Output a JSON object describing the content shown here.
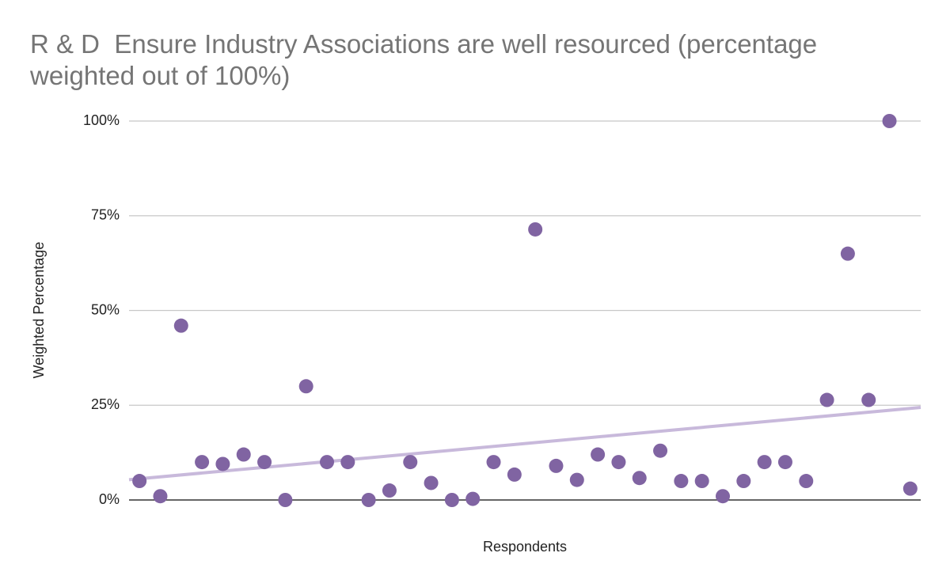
{
  "chart_data": {
    "type": "scatter",
    "title": "R & D  Ensure Industry Associations are well resourced (percentage weighted out of 100%)",
    "x_label": "Respondents",
    "y_label": "Weighted Percentage",
    "x": [
      1,
      2,
      3,
      4,
      5,
      6,
      7,
      8,
      9,
      10,
      11,
      12,
      13,
      14,
      15,
      16,
      17,
      18,
      19,
      20,
      21,
      22,
      23,
      24,
      25,
      26,
      27,
      28,
      29,
      30,
      31,
      32,
      33,
      34,
      35,
      36,
      37,
      38
    ],
    "values": [
      5,
      1,
      46,
      10,
      9.5,
      12,
      10,
      0,
      30,
      10,
      10,
      0,
      2.5,
      10,
      4.5,
      0,
      0.3,
      10,
      6.7,
      71.4,
      9,
      5.3,
      12,
      10,
      5.8,
      13,
      5,
      5,
      1,
      5,
      10,
      10,
      5,
      26.4,
      65,
      26.4,
      100,
      3
    ],
    "color": "#8064a2",
    "trendline": true,
    "trendline_color": "#c8b9db",
    "xlim": [
      0.5,
      38.5
    ],
    "ylim": [
      0,
      100
    ],
    "yticks": [
      {
        "value": 0,
        "label": "0%"
      },
      {
        "value": 25,
        "label": "25%"
      },
      {
        "value": 50,
        "label": "50%"
      },
      {
        "value": 75,
        "label": "75%"
      },
      {
        "value": 100,
        "label": "100%"
      }
    ],
    "grid": true
  }
}
